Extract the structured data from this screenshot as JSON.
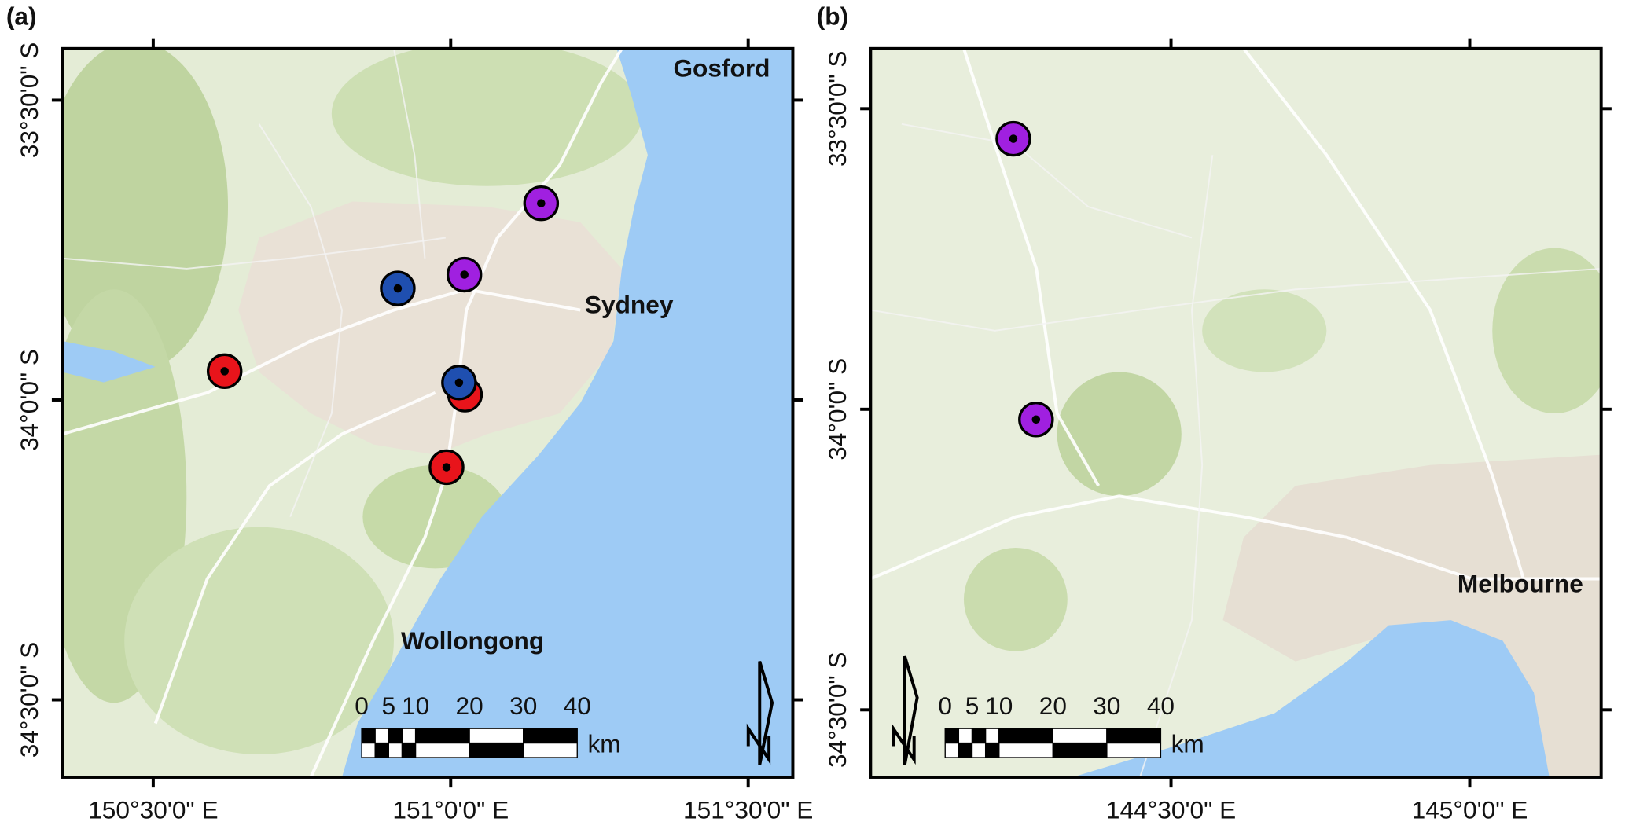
{
  "panels": [
    {
      "label": "(a)",
      "xlim": [
        150.347,
        151.575
      ],
      "ylim": [
        -34.629,
        -33.414
      ],
      "xticks": [
        {
          "value": 150.5,
          "label": "150°30'0\" E"
        },
        {
          "value": 151.0,
          "label": "151°0'0\" E"
        },
        {
          "value": 151.5,
          "label": "151°30'0\" E"
        }
      ],
      "yticks": [
        {
          "value": -33.5,
          "label": "33°30'0\" S"
        },
        {
          "value": -34.0,
          "label": "34°0'0\" S"
        },
        {
          "value": -34.5,
          "label": "34°30'0\" S"
        }
      ],
      "places": [
        "Gosford",
        "Sydney",
        "Wollongong"
      ],
      "sites": [
        {
          "color": "#a020e0",
          "lon": 151.152,
          "lat": -33.672
        },
        {
          "color": "#a020e0",
          "lon": 151.023,
          "lat": -33.791
        },
        {
          "color": "#1f4fb0",
          "lon": 150.911,
          "lat": -33.814
        },
        {
          "color": "#e8141b",
          "lon": 150.62,
          "lat": -33.952
        },
        {
          "color": "#e8141b",
          "lon": 151.024,
          "lat": -33.991
        },
        {
          "color": "#1f4fb0",
          "lon": 151.014,
          "lat": -33.971
        },
        {
          "color": "#e8141b",
          "lon": 150.993,
          "lat": -34.112
        }
      ],
      "scale_bar": {
        "ticks": [
          0,
          5,
          10,
          20,
          30,
          40
        ],
        "unit": "km"
      }
    },
    {
      "label": "(b)",
      "xlim": [
        143.997,
        145.22
      ],
      "ylim": [
        -34.612,
        -33.4
      ],
      "xticks": [
        {
          "value": 144.5,
          "label": "144°30'0\" E"
        },
        {
          "value": 145.0,
          "label": "145°0'0\" E"
        }
      ],
      "yticks": [
        {
          "value": -33.5,
          "label": "33°30'0\" S"
        },
        {
          "value": -34.0,
          "label": "34°0'0\" S"
        },
        {
          "value": -34.5,
          "label": "34°30'0\" S"
        }
      ],
      "places": [
        "Melbourne"
      ],
      "sites": [
        {
          "color": "#a020e0",
          "lon": 144.236,
          "lat": -33.55
        },
        {
          "color": "#a020e0",
          "lon": 144.274,
          "lat": -34.017
        }
      ],
      "scale_bar": {
        "ticks": [
          0,
          5,
          10,
          20,
          30,
          40
        ],
        "unit": "km"
      }
    }
  ]
}
